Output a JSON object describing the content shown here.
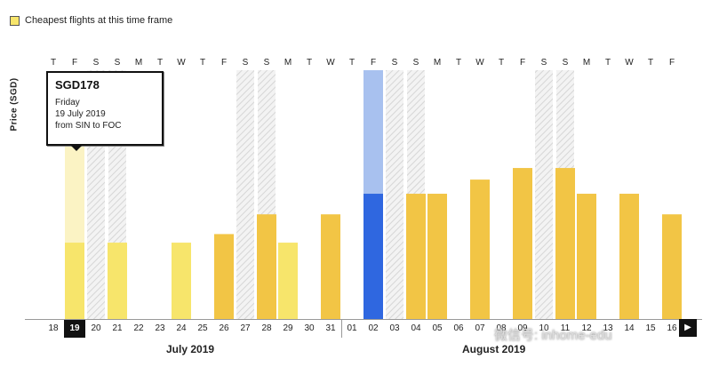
{
  "legend": {
    "label": "Cheapest flights at this time frame",
    "color": "#f7e56b"
  },
  "ylabel": "Price (SGD)",
  "tooltip": {
    "price": "SGD178",
    "day": "Friday",
    "date": "19 July 2019",
    "route": "from SIN to FOC"
  },
  "months": [
    "July 2019",
    "August 2019"
  ],
  "nav": {
    "prev": "◀",
    "next": "▶"
  },
  "watermark": "微信号: inhome-edu",
  "colors": {
    "cheap": "#f7e56b",
    "regular": "#f2c545",
    "selected": "#2f67e0",
    "selected_light": "#a8c1ef"
  },
  "chart_data": {
    "type": "bar",
    "categories": [
      "18",
      "19",
      "20",
      "21",
      "22",
      "23",
      "24",
      "25",
      "26",
      "27",
      "28",
      "29",
      "30",
      "31",
      "01",
      "02",
      "03",
      "04",
      "05",
      "06",
      "07",
      "08",
      "09",
      "10",
      "11",
      "12",
      "13",
      "14",
      "15",
      "16"
    ],
    "day_of_week": [
      "T",
      "F",
      "S",
      "S",
      "M",
      "T",
      "W",
      "T",
      "F",
      "S",
      "S",
      "M",
      "T",
      "W",
      "T",
      "F",
      "S",
      "S",
      "M",
      "T",
      "W",
      "T",
      "F",
      "S",
      "S",
      "M",
      "T",
      "W",
      "T",
      "F"
    ],
    "weekend_shading": [
      false,
      false,
      true,
      true,
      false,
      false,
      false,
      false,
      false,
      true,
      true,
      false,
      false,
      false,
      false,
      false,
      true,
      true,
      false,
      false,
      false,
      false,
      false,
      true,
      true,
      false,
      false,
      false,
      false,
      false
    ],
    "values": [
      null,
      178,
      null,
      178,
      null,
      null,
      178,
      null,
      198,
      null,
      244,
      178,
      null,
      244,
      null,
      292,
      null,
      292,
      292,
      null,
      325,
      null,
      352,
      null,
      352,
      292,
      null,
      292,
      null,
      244
    ],
    "kind": [
      null,
      "cheap",
      null,
      "cheap",
      null,
      null,
      "cheap",
      null,
      "regular",
      null,
      "regular",
      "cheap",
      null,
      "regular",
      null,
      "selected",
      null,
      "regular",
      "regular",
      null,
      "regular",
      null,
      "regular",
      null,
      "regular",
      "regular",
      null,
      "regular",
      null,
      "regular"
    ],
    "selected_date": "19",
    "highlight_date": "02",
    "ylim": [
      0,
      580
    ]
  }
}
